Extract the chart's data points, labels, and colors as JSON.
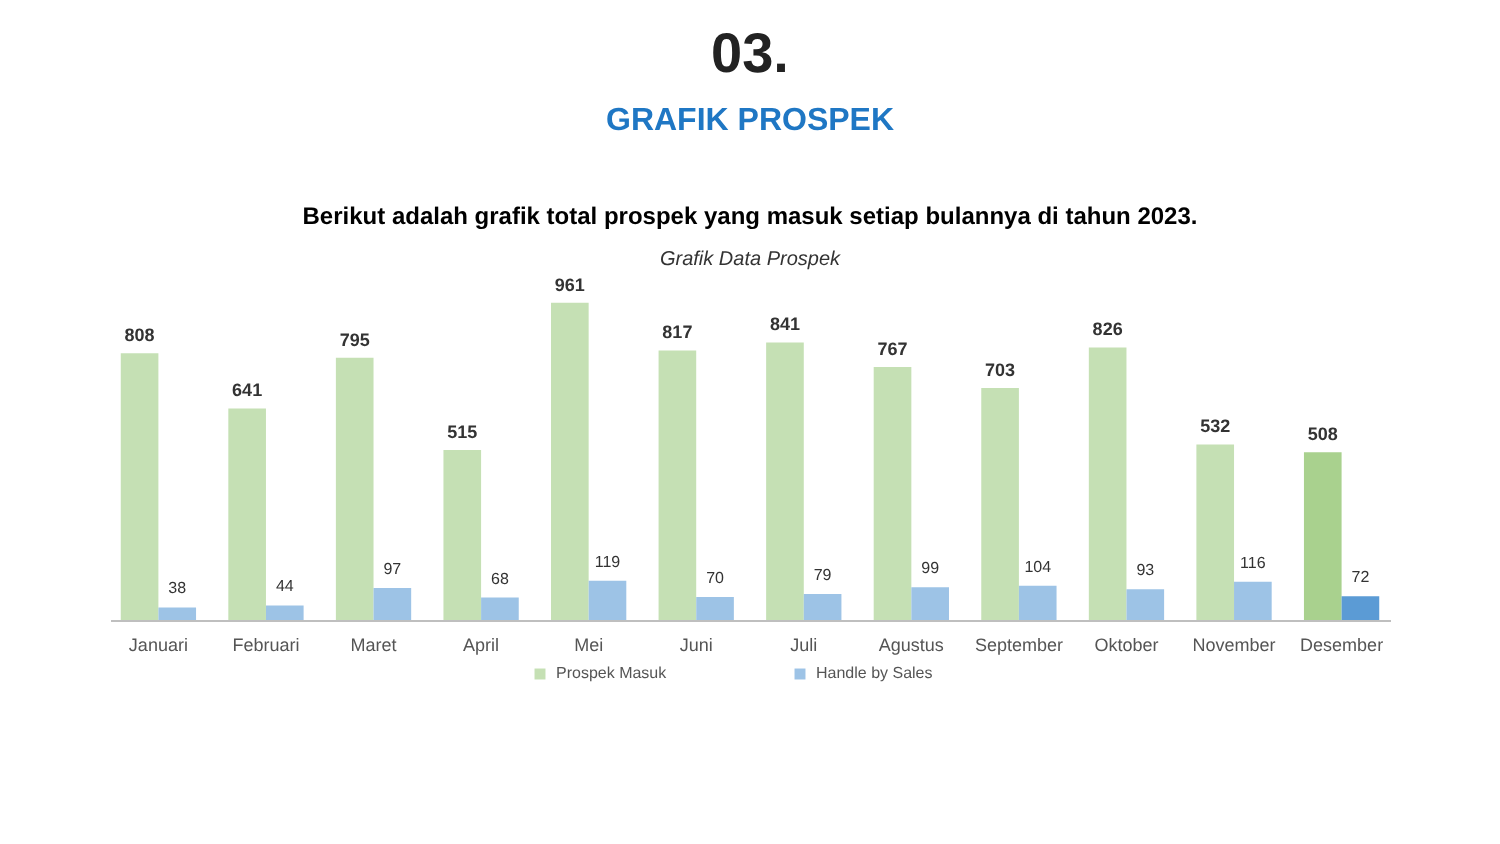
{
  "chart_data": {
    "type": "bar",
    "title": "Grafik Data Prospek",
    "subtitle": "Berikut adalah grafik total prospek yang masuk setiap bulannya di tahun 2023.",
    "annotations": [
      "03.",
      "GRAFIK PROSPEK"
    ],
    "categories": [
      "Januari",
      "Februari",
      "Maret",
      "April",
      "Mei",
      "Juni",
      "Juli",
      "Agustus",
      "September",
      "Oktober",
      "November",
      "Desember"
    ],
    "series": [
      {
        "name": "Prospek Masuk",
        "color": "#c5e0b4",
        "colors": [
          "#c5e0b4",
          "#c5e0b4",
          "#c5e0b4",
          "#c5e0b4",
          "#c5e0b4",
          "#c5e0b4",
          "#c5e0b4",
          "#c5e0b4",
          "#c5e0b4",
          "#c5e0b4",
          "#c5e0b4",
          "#a9d18e"
        ],
        "values": [
          808,
          641,
          795,
          515,
          961,
          817,
          841,
          767,
          703,
          826,
          532,
          508
        ]
      },
      {
        "name": "Handle by Sales",
        "color": "#9dc3e6",
        "colors": [
          "#9dc3e6",
          "#9dc3e6",
          "#9dc3e6",
          "#9dc3e6",
          "#9dc3e6",
          "#9dc3e6",
          "#9dc3e6",
          "#9dc3e6",
          "#9dc3e6",
          "#9dc3e6",
          "#9dc3e6",
          "#5b9bd5"
        ],
        "values": [
          38,
          44,
          97,
          68,
          119,
          70,
          79,
          99,
          104,
          93,
          116,
          72
        ]
      }
    ],
    "data_labels": true,
    "legend": "bottom",
    "grid": false
  }
}
